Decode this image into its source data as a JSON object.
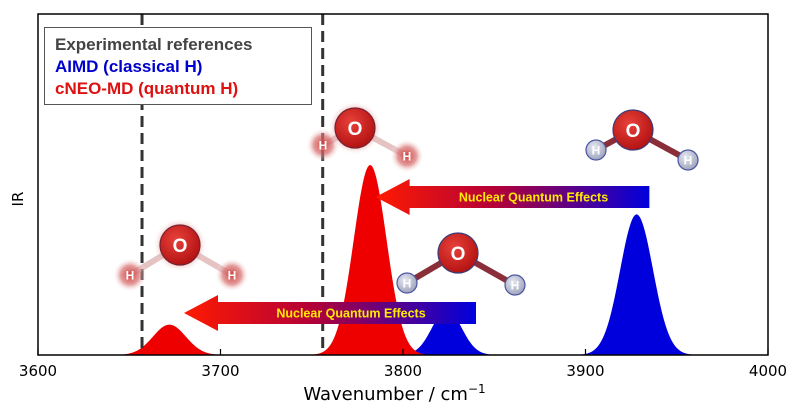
{
  "chart_data": {
    "type": "area",
    "xlabel": "Wavenumber / cm",
    "xlabel_sup": "−1",
    "ylabel": "IR",
    "xlim": [
      3600,
      4000
    ],
    "x_ticks": [
      "3600",
      "3700",
      "3800",
      "3900",
      "4000"
    ],
    "x_tick_values": [
      3600,
      3700,
      3800,
      3900,
      4000
    ],
    "reference_lines": [
      3657,
      3756
    ],
    "series": [
      {
        "name": "AIMD (classical H)",
        "color": "#0000dd",
        "peaks": [
          {
            "center": 3824,
            "height": 0.24,
            "width": 8
          },
          {
            "center": 3928,
            "height": 0.74,
            "width": 9
          }
        ]
      },
      {
        "name": "cNEO-MD (quantum H)",
        "color": "#ee0000",
        "peaks": [
          {
            "center": 3672,
            "height": 0.16,
            "width": 9
          },
          {
            "center": 3782,
            "height": 1.0,
            "width": 9
          }
        ]
      }
    ],
    "legend": [
      {
        "label": "Experimental references",
        "color": "#444444"
      },
      {
        "label": "AIMD (classical H)",
        "color": "#0000cc"
      },
      {
        "label": "cNEO-MD (quantum H)",
        "color": "#dd1111"
      }
    ],
    "annotations": [
      {
        "text": "Nuclear Quantum Effects",
        "tail_x": 3840,
        "head_x": 3680
      },
      {
        "text": "Nuclear Quantum Effects",
        "tail_x": 3935,
        "head_x": 3785
      }
    ],
    "molecule_labels": {
      "oxygen": "O",
      "hydrogen": "H"
    },
    "grid": false
  }
}
